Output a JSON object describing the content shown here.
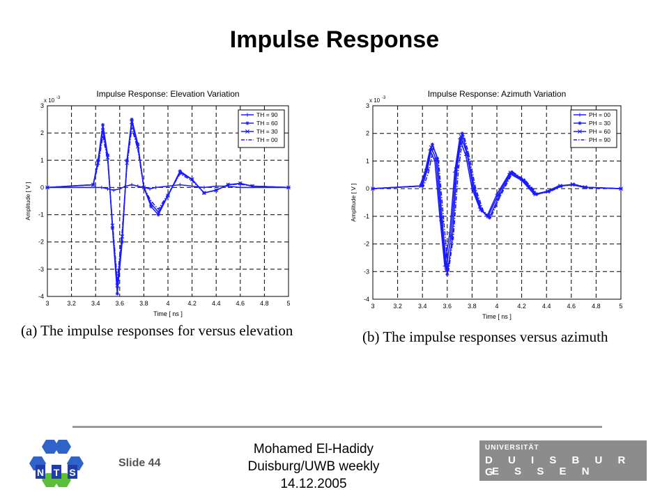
{
  "slide": {
    "title": "Impulse Response",
    "slide_number": "Slide 44",
    "footer_lines": [
      "Mohamed El-Hadidy",
      "Duisburg/UWB weekly",
      "14.12.2005"
    ],
    "university_logo": {
      "top": "UNIVERSITÄT",
      "line1": "D U I S B U R G",
      "line2": "E S S E N"
    },
    "nts_logo_letters": [
      "N",
      "T",
      "S"
    ]
  },
  "captions": [
    "(a) The impulse responses for versus elevation",
    "(b) The impulse responses versus azimuth"
  ],
  "colors": {
    "series": "#1a1aff",
    "grid": "#000000",
    "logo_blue": "#1f3ea8",
    "logo_green": "#5bbf3a"
  },
  "chart_data": [
    {
      "type": "line",
      "title": "Impulse Response: Elevation Variation",
      "xlabel": "Time [ ns ]",
      "ylabel": "Amplitude [ V ]",
      "y_multiplier": "x 10",
      "y_multiplier_exp": "-3",
      "xlim": [
        3,
        5
      ],
      "ylim": [
        -4,
        3
      ],
      "xticks": [
        "3",
        "3.2",
        "3.4",
        "3.6",
        "3.8",
        "4",
        "4.2",
        "4.4",
        "4.6",
        "4.8",
        "5"
      ],
      "yticks": [
        "3",
        "2",
        "1",
        "0",
        "-1",
        "-2",
        "-3",
        "-4"
      ],
      "grid": true,
      "legend_position": "top-right",
      "series": [
        {
          "name": "TH = 90",
          "marker": "+",
          "line": "solid",
          "x": [
            3.0,
            3.4,
            3.45,
            3.5,
            3.55,
            3.6,
            3.65,
            3.7,
            3.75,
            3.8,
            3.85,
            3.9,
            4.0,
            4.1,
            4.2,
            4.3,
            4.4,
            4.5,
            4.6,
            5.0
          ],
          "y": [
            0.0,
            0.0,
            0.0,
            -0.05,
            -0.1,
            -0.05,
            0.05,
            0.1,
            0.05,
            0.0,
            -0.05,
            0.0,
            0.05,
            0.1,
            0.05,
            0.0,
            0.05,
            0.05,
            0.0,
            0.0
          ]
        },
        {
          "name": "TH = 60",
          "marker": "*",
          "line": "solid",
          "x": [
            3.0,
            3.38,
            3.42,
            3.46,
            3.5,
            3.54,
            3.58,
            3.62,
            3.66,
            3.7,
            3.75,
            3.8,
            3.86,
            3.92,
            4.0,
            4.1,
            4.2,
            4.3,
            4.4,
            4.5,
            4.6,
            4.7,
            5.0
          ],
          "y": [
            0.0,
            0.1,
            1.0,
            2.3,
            1.2,
            -1.5,
            -3.9,
            -2.0,
            1.0,
            2.5,
            1.6,
            0.0,
            -0.7,
            -1.0,
            -0.3,
            0.6,
            0.3,
            -0.2,
            -0.1,
            0.1,
            0.15,
            0.05,
            0.0
          ]
        },
        {
          "name": "TH = 30",
          "marker": "x",
          "line": "solid",
          "x": [
            3.0,
            3.38,
            3.42,
            3.46,
            3.5,
            3.54,
            3.58,
            3.62,
            3.66,
            3.7,
            3.75,
            3.8,
            3.86,
            3.92,
            4.0,
            4.1,
            4.2,
            4.3,
            4.4,
            4.5,
            4.6,
            4.7,
            5.0
          ],
          "y": [
            0.0,
            0.1,
            0.9,
            2.1,
            1.1,
            -1.4,
            -3.6,
            -1.8,
            0.9,
            2.4,
            1.5,
            0.0,
            -0.6,
            -0.9,
            -0.3,
            0.55,
            0.3,
            -0.2,
            -0.1,
            0.1,
            0.15,
            0.05,
            0.0
          ]
        },
        {
          "name": "TH = 00",
          "marker": "none",
          "line": "dashdot",
          "x": [
            3.0,
            3.38,
            3.42,
            3.46,
            3.5,
            3.54,
            3.58,
            3.62,
            3.66,
            3.7,
            3.75,
            3.8,
            3.86,
            3.92,
            4.0,
            4.1,
            4.2,
            4.3,
            4.4,
            4.5,
            4.6,
            4.7,
            5.0
          ],
          "y": [
            0.0,
            0.1,
            0.8,
            1.9,
            1.0,
            -1.3,
            -3.4,
            -1.6,
            0.8,
            2.2,
            1.4,
            0.0,
            -0.5,
            -0.8,
            -0.25,
            0.5,
            0.25,
            -0.2,
            -0.1,
            0.1,
            0.12,
            0.05,
            0.0
          ]
        }
      ]
    },
    {
      "type": "line",
      "title": "Impulse Response: Azimuth Variation",
      "xlabel": "Time [ ns ]",
      "ylabel": "Amplitude [ V ]",
      "y_multiplier": "x 10",
      "y_multiplier_exp": "-3",
      "xlim": [
        3,
        5
      ],
      "ylim": [
        -4,
        3
      ],
      "xticks": [
        "3",
        "3.2",
        "3.4",
        "3.6",
        "3.8",
        "4",
        "4.2",
        "4.4",
        "4.6",
        "4.8",
        "5"
      ],
      "yticks": [
        "3",
        "2",
        "1",
        "0",
        "-1",
        "-2",
        "-3",
        "-4"
      ],
      "grid": true,
      "legend_position": "top-right",
      "series": [
        {
          "name": "PH = 00",
          "marker": "+",
          "line": "solid",
          "x": [
            3.0,
            3.38,
            3.42,
            3.46,
            3.5,
            3.54,
            3.58,
            3.62,
            3.66,
            3.7,
            3.75,
            3.8,
            3.86,
            3.92,
            4.0,
            4.1,
            4.2,
            4.3,
            4.4,
            4.5,
            4.6,
            4.7,
            5.0
          ],
          "y": [
            0.0,
            0.1,
            0.6,
            1.4,
            1.0,
            -1.0,
            -2.8,
            -1.6,
            0.6,
            1.8,
            1.2,
            0.0,
            -0.7,
            -1.0,
            -0.2,
            0.55,
            0.3,
            -0.2,
            -0.1,
            0.1,
            0.15,
            0.05,
            0.0
          ]
        },
        {
          "name": "PH = 30",
          "marker": "*",
          "line": "solid",
          "x": [
            3.0,
            3.4,
            3.44,
            3.48,
            3.52,
            3.56,
            3.6,
            3.64,
            3.68,
            3.72,
            3.76,
            3.82,
            3.88,
            3.94,
            4.02,
            4.12,
            4.22,
            4.32,
            4.42,
            4.52,
            4.62,
            4.72,
            5.0
          ],
          "y": [
            0.0,
            0.1,
            0.7,
            1.6,
            1.1,
            -1.2,
            -3.1,
            -1.8,
            0.8,
            2.0,
            1.3,
            0.0,
            -0.8,
            -1.05,
            -0.25,
            0.6,
            0.3,
            -0.2,
            -0.1,
            0.1,
            0.15,
            0.05,
            0.0
          ]
        },
        {
          "name": "PH = 60",
          "marker": "x",
          "line": "solid",
          "x": [
            3.0,
            3.39,
            3.43,
            3.47,
            3.51,
            3.55,
            3.59,
            3.63,
            3.67,
            3.71,
            3.76,
            3.81,
            3.87,
            3.93,
            4.01,
            4.11,
            4.21,
            4.31,
            4.41,
            4.51,
            4.61,
            4.71,
            5.0
          ],
          "y": [
            0.0,
            0.1,
            0.65,
            1.5,
            1.05,
            -1.1,
            -2.95,
            -1.7,
            0.7,
            1.9,
            1.25,
            0.0,
            -0.75,
            -1.0,
            -0.22,
            0.58,
            0.3,
            -0.2,
            -0.1,
            0.1,
            0.15,
            0.05,
            0.0
          ]
        },
        {
          "name": "PH = 90",
          "marker": "none",
          "line": "dashdot",
          "x": [
            3.0,
            3.41,
            3.45,
            3.49,
            3.53,
            3.57,
            3.61,
            3.65,
            3.69,
            3.73,
            3.77,
            3.83,
            3.89,
            3.95,
            4.03,
            4.13,
            4.23,
            4.33,
            4.43,
            4.53,
            4.63,
            4.73,
            5.0
          ],
          "y": [
            0.0,
            0.1,
            0.6,
            1.5,
            1.0,
            -1.1,
            -3.0,
            -1.7,
            0.7,
            2.0,
            1.3,
            0.0,
            -0.8,
            -1.05,
            -0.25,
            0.6,
            0.3,
            -0.2,
            -0.1,
            0.1,
            0.15,
            0.05,
            0.0
          ]
        }
      ]
    }
  ]
}
